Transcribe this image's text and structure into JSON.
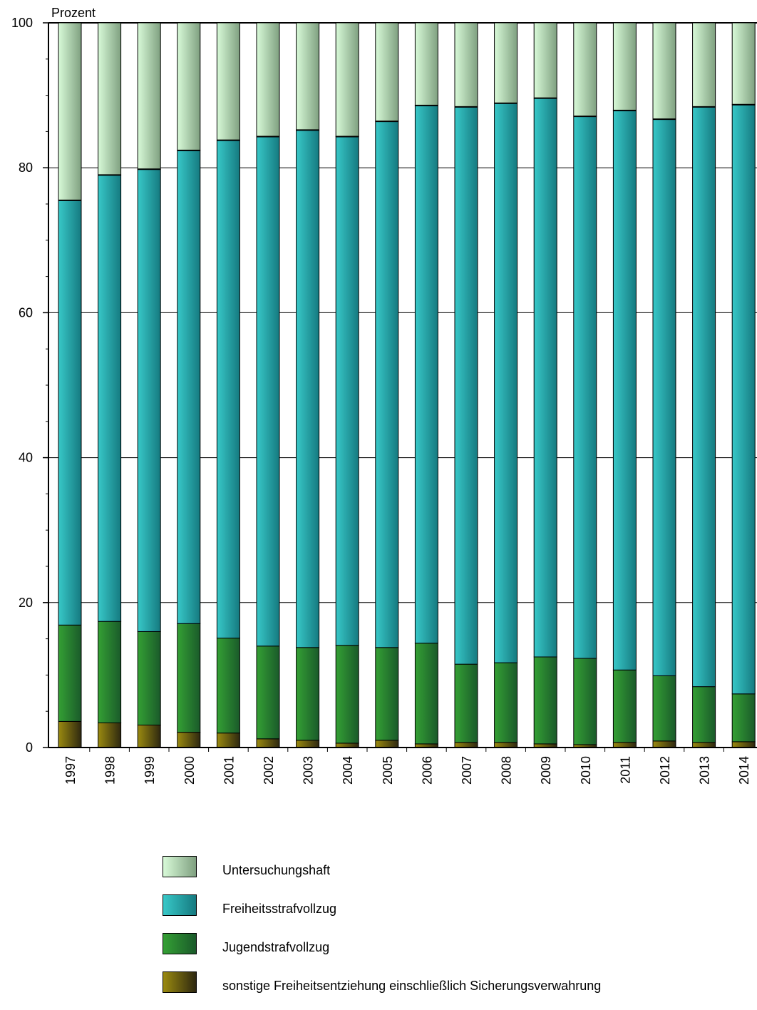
{
  "chart_data": {
    "type": "bar",
    "stacked": true,
    "ylabel": "Prozent",
    "ylim": [
      0,
      100
    ],
    "yticks": [
      0,
      20,
      40,
      60,
      80,
      100
    ],
    "grid": "horizontal",
    "legend_position": "bottom",
    "categories": [
      "1997",
      "1998",
      "1999",
      "2000",
      "2001",
      "2002",
      "2003",
      "2004",
      "2005",
      "2006",
      "2007",
      "2008",
      "2009",
      "2010",
      "2011",
      "2012",
      "2013",
      "2014"
    ],
    "series": [
      {
        "name": "sonstige Freiheitsentziehung einschließlich Sicherungsverwahrung",
        "color": "#8a7a10",
        "values": [
          3.6,
          3.4,
          3.1,
          2.1,
          2.0,
          1.2,
          1.0,
          0.6,
          1.0,
          0.5,
          0.7,
          0.7,
          0.5,
          0.4,
          0.7,
          0.9,
          0.7,
          0.8
        ]
      },
      {
        "name": "Jugendstrafvollzug",
        "color": "#2a8a30",
        "values": [
          13.3,
          14.0,
          12.9,
          15.0,
          13.1,
          12.8,
          12.8,
          13.5,
          12.8,
          13.9,
          10.8,
          11.0,
          12.0,
          11.9,
          10.0,
          9.0,
          7.7,
          6.6
        ]
      },
      {
        "name": "Freiheitsstrafvollzug",
        "color": "#2ab8b8",
        "values": [
          58.6,
          61.6,
          63.8,
          65.3,
          68.7,
          70.3,
          71.4,
          70.2,
          72.6,
          74.2,
          76.9,
          77.2,
          77.1,
          74.8,
          77.2,
          76.8,
          80.0,
          81.3
        ]
      },
      {
        "name": "Untersuchungshaft",
        "color": "#c8f0c8",
        "values": [
          24.5,
          21.0,
          20.2,
          17.6,
          16.2,
          15.7,
          14.8,
          15.7,
          13.6,
          11.4,
          11.6,
          11.1,
          10.4,
          12.9,
          12.1,
          13.3,
          11.6,
          11.3
        ]
      }
    ]
  }
}
